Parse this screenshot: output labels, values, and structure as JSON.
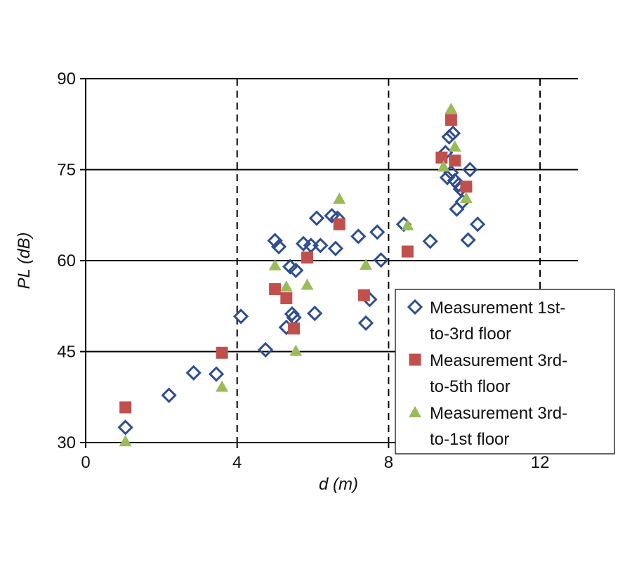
{
  "chart_data": {
    "type": "scatter",
    "title": "",
    "xlabel": "d (m)",
    "ylabel": "PL (dB)",
    "xlim": [
      0,
      13
    ],
    "ylim": [
      30,
      90
    ],
    "x_ticks": [
      0,
      4,
      8,
      12
    ],
    "y_ticks": [
      30,
      45,
      60,
      75,
      90
    ],
    "horizontal_grid": "solid",
    "vertical_grid": "dashed",
    "legend_position": "right",
    "series": [
      {
        "name": [
          "Measurement 1st-",
          "to-3rd floor"
        ],
        "marker": "diamond-open",
        "color": "#2E4E8F",
        "x": [
          1.05,
          2.2,
          2.85,
          3.45,
          4.1,
          4.75,
          5.0,
          5.1,
          5.3,
          5.4,
          5.45,
          5.5,
          5.55,
          5.75,
          5.95,
          6.05,
          6.1,
          6.2,
          6.5,
          6.6,
          6.65,
          7.2,
          7.4,
          7.5,
          7.7,
          7.8,
          8.4,
          9.1,
          9.5,
          9.55,
          9.6,
          9.65,
          9.7,
          9.75,
          9.8,
          9.85,
          9.9,
          9.95,
          10.1,
          10.15,
          10.35
        ],
        "y": [
          32.5,
          37.8,
          41.5,
          41.3,
          50.8,
          45.3,
          63.3,
          62.3,
          49.0,
          59.0,
          51.2,
          50.6,
          58.4,
          62.8,
          62.5,
          51.3,
          67.0,
          62.5,
          67.4,
          62.0,
          67.0,
          64.0,
          49.7,
          53.6,
          64.7,
          60.1,
          66.0,
          63.2,
          77.8,
          73.7,
          80.4,
          74.5,
          81.0,
          73.2,
          68.5,
          72.5,
          71.8,
          69.7,
          63.4,
          75.0,
          66.0
        ]
      },
      {
        "name": [
          "Measurement 3rd-",
          "to-5th floor"
        ],
        "marker": "square",
        "color": "#C0504D",
        "x": [
          1.05,
          3.6,
          5.0,
          5.3,
          5.5,
          5.85,
          6.7,
          7.35,
          8.5,
          9.4,
          9.65,
          9.75,
          10.05
        ],
        "y": [
          35.8,
          44.8,
          55.3,
          53.8,
          48.8,
          60.5,
          66.0,
          54.3,
          61.5,
          77.0,
          83.2,
          76.5,
          72.2
        ]
      },
      {
        "name": [
          "Measurement 3rd-",
          "to-1st floor"
        ],
        "marker": "triangle",
        "color": "#9BBB59",
        "x": [
          1.05,
          3.6,
          5.0,
          5.3,
          5.55,
          5.85,
          6.7,
          7.4,
          8.5,
          9.45,
          9.65,
          9.75,
          10.05
        ],
        "y": [
          30.2,
          39.2,
          59.2,
          55.7,
          45.1,
          56.0,
          70.2,
          59.3,
          65.8,
          75.5,
          85.0,
          78.8,
          70.3
        ]
      }
    ]
  }
}
